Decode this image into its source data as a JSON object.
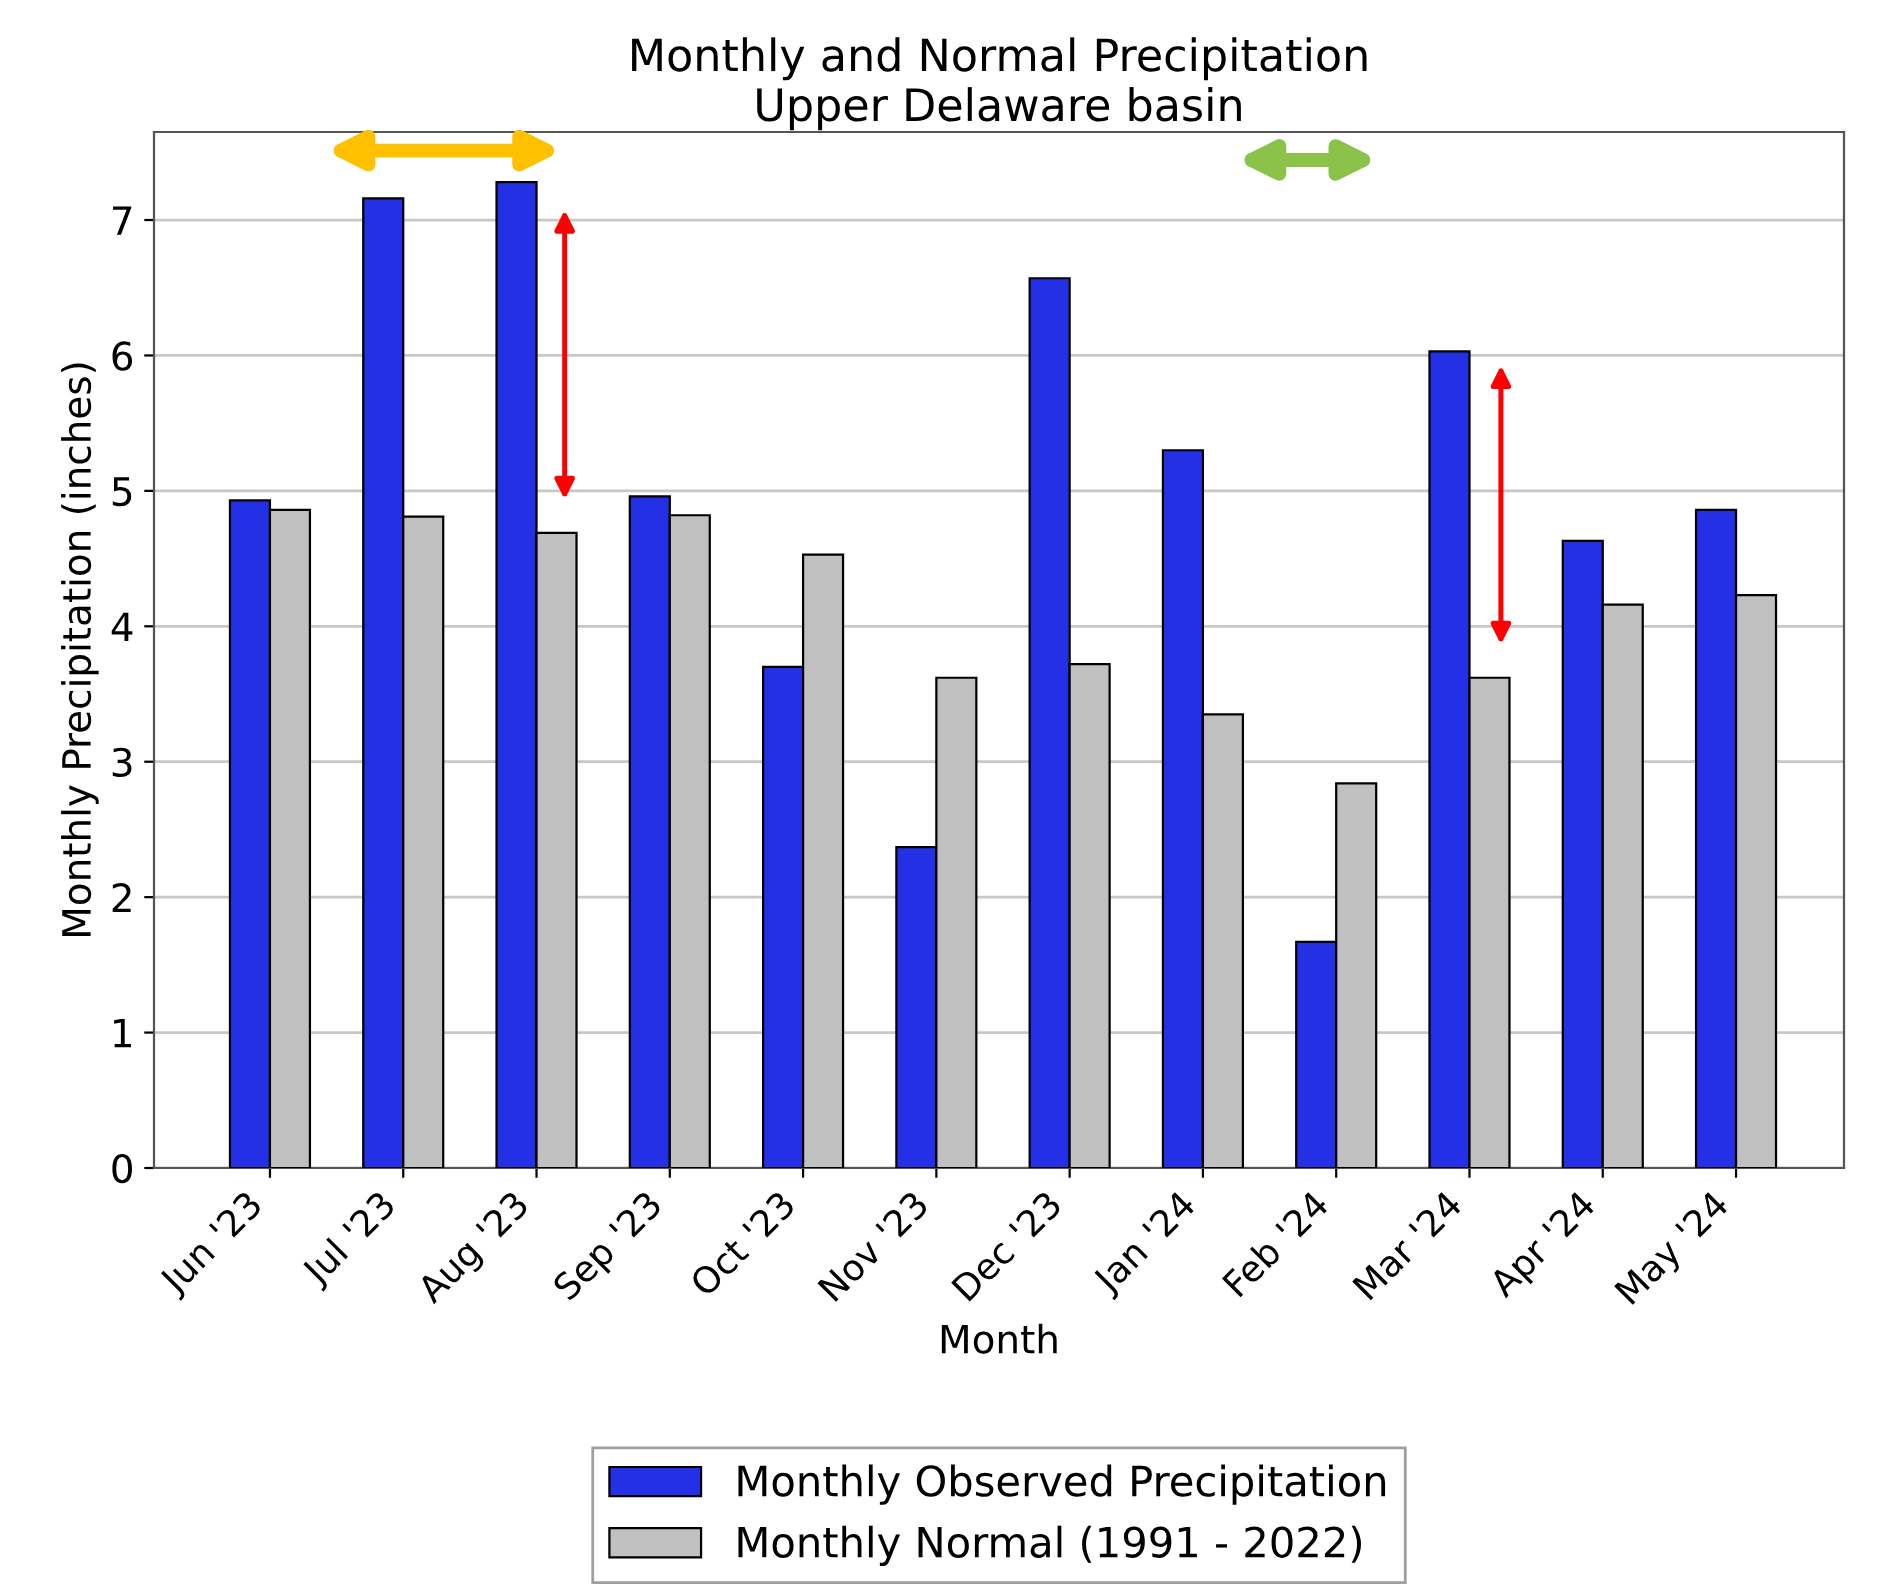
{
  "chart_data": {
    "type": "bar",
    "title": "Monthly and Normal Precipitation\nUpper Delaware basin",
    "xlabel": "Month",
    "ylabel": "Monthly Precipitation (inches)",
    "categories": [
      "Jun '23",
      "Jul '23",
      "Aug '23",
      "Sep '23",
      "Oct '23",
      "Nov '23",
      "Dec '23",
      "Jan '24",
      "Feb '24",
      "Mar '24",
      "Apr '24",
      "May '24"
    ],
    "series": [
      {
        "name": "Monthly Observed Precipitation",
        "color": "#2330e6",
        "values": [
          4.93,
          7.16,
          7.28,
          4.96,
          3.7,
          2.37,
          6.57,
          5.3,
          1.67,
          6.03,
          4.63,
          4.86
        ]
      },
      {
        "name": "Monthly Normal (1991 - 2022)",
        "color": "#c0c0c0",
        "values": [
          4.86,
          4.81,
          4.69,
          4.82,
          4.53,
          3.62,
          3.72,
          3.35,
          2.84,
          3.62,
          4.16,
          4.23
        ]
      }
    ],
    "ylim": [
      0,
      7.65
    ],
    "yticks": [
      0,
      1,
      2,
      3,
      4,
      5,
      6,
      7
    ],
    "grid": "y",
    "legend": "bottom"
  }
}
